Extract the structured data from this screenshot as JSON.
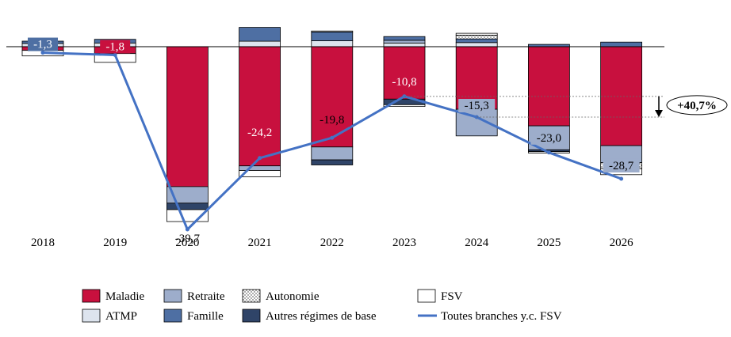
{
  "chart_data": {
    "type": "bar",
    "stacked": true,
    "categories": [
      "2018",
      "2019",
      "2020",
      "2021",
      "2022",
      "2023",
      "2024",
      "2025",
      "2026"
    ],
    "series": [
      {
        "name": "Maladie",
        "color": "#c8103e",
        "pattern": "solid",
        "values": [
          -0.8,
          -1.5,
          -30.4,
          -25.9,
          -21.8,
          -11.4,
          -13.6,
          -17.2,
          -21.5
        ]
      },
      {
        "name": "ATMP",
        "color": "#dde4ee",
        "pattern": "solid",
        "values": [
          0.7,
          0.8,
          0,
          1.2,
          1.3,
          0.8,
          0.9,
          0,
          0
        ]
      },
      {
        "name": "Retraite",
        "color": "#9dadcb",
        "pattern": "solid",
        "values": [
          0,
          0,
          -3.6,
          -1.0,
          -2.8,
          0.6,
          -5.8,
          -5.2,
          -3.7
        ]
      },
      {
        "name": "Famille",
        "color": "#4e6fa3",
        "pattern": "solid",
        "values": [
          0.5,
          0.8,
          0,
          3.0,
          1.9,
          0.8,
          0.8,
          0.5,
          1.0
        ]
      },
      {
        "name": "Autonomie",
        "color": "#ffffff",
        "pattern": "dots",
        "values": [
          0,
          0,
          0,
          0,
          0,
          0,
          0.8,
          0,
          -1.3
        ]
      },
      {
        "name": "Autres régimes de base",
        "color": "#2f4468",
        "pattern": "solid",
        "values": [
          0,
          0,
          -1.4,
          0,
          -1.1,
          -1.2,
          0,
          -0.4,
          0
        ]
      },
      {
        "name": "FSV",
        "color": "#ffffff",
        "pattern": "solid",
        "values": [
          -1.2,
          -1.9,
          -2.6,
          -1.4,
          0.2,
          -0.4,
          0.4,
          -0.3,
          -1.3
        ]
      }
    ],
    "line": {
      "name": "Toutes branches y.c. FSV",
      "color": "#4472c4",
      "values": [
        -1.3,
        -1.8,
        -39.7,
        -24.2,
        -19.8,
        -10.8,
        -15.3,
        -23.0,
        -28.7
      ],
      "labels": [
        "-1,3",
        "-1,8",
        "-39,7",
        "-24,2",
        "-19,8",
        "-10,8",
        "-15,3",
        "-23,0",
        "-28,7"
      ]
    },
    "annotation": {
      "text": "+40,7%",
      "from": -10.8,
      "to": -15.3,
      "arrow": "down"
    },
    "ylim": [
      -40.5,
      5
    ],
    "title": "",
    "xlabel": "",
    "ylabel": "",
    "grid": false,
    "legend_position": "bottom",
    "legend_order": [
      "Maladie",
      "Retraite",
      "Autonomie",
      "FSV",
      "ATMP",
      "Famille",
      "Autres régimes de base",
      "Toutes branches y.c. FSV"
    ]
  }
}
